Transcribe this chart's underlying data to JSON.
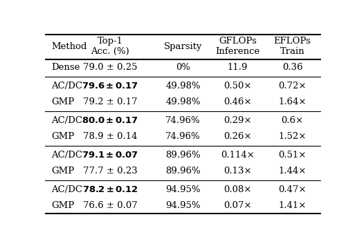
{
  "col_headers": [
    "Method",
    "Top-1\nAcc. (%)",
    "Sparsity",
    "GFLOPs\nInference",
    "EFLOPs\nTrain"
  ],
  "rows": [
    [
      "Dense",
      "79.0 \\pm 0.25",
      "0%",
      "11.9",
      "0.36",
      false
    ],
    [
      "AC/DC",
      "79.6 \\pm 0.17",
      "49.98%",
      "0.50\\times",
      "0.72\\times",
      true
    ],
    [
      "GMP",
      "79.2 \\pm 0.17",
      "49.98%",
      "0.46\\times",
      "1.64\\times",
      false
    ],
    [
      "AC/DC",
      "80.0 \\pm 0.17",
      "74.96%",
      "0.29\\times",
      "0.6\\times",
      true
    ],
    [
      "GMP",
      "78.9 \\pm 0.14",
      "74.96%",
      "0.26\\times",
      "1.52\\times",
      false
    ],
    [
      "AC/DC",
      "79.1 \\pm 0.07",
      "89.96%",
      "0.114\\times",
      "0.51\\times",
      true
    ],
    [
      "GMP",
      "77.7 \\pm 0.23",
      "89.96%",
      "0.13\\times",
      "1.44\\times",
      false
    ],
    [
      "AC/DC",
      "78.2 \\pm 0.12",
      "94.95%",
      "0.08\\times",
      "0.47\\times",
      true
    ],
    [
      "GMP",
      "76.6 \\pm 0.07",
      "94.95%",
      "0.07\\times",
      "1.41\\times",
      false
    ]
  ],
  "bold_flags": [
    false,
    true,
    false,
    true,
    false,
    true,
    false,
    true,
    false
  ],
  "group_sep_after_rows": [
    0,
    2,
    4,
    6
  ],
  "col_x_inch": [
    0.13,
    1.22,
    2.58,
    3.6,
    4.62
  ],
  "col_align": [
    "left",
    "center",
    "center",
    "center",
    "center"
  ],
  "bg_color": "#ffffff",
  "font_size": 9.5,
  "header_font_size": 9.5
}
